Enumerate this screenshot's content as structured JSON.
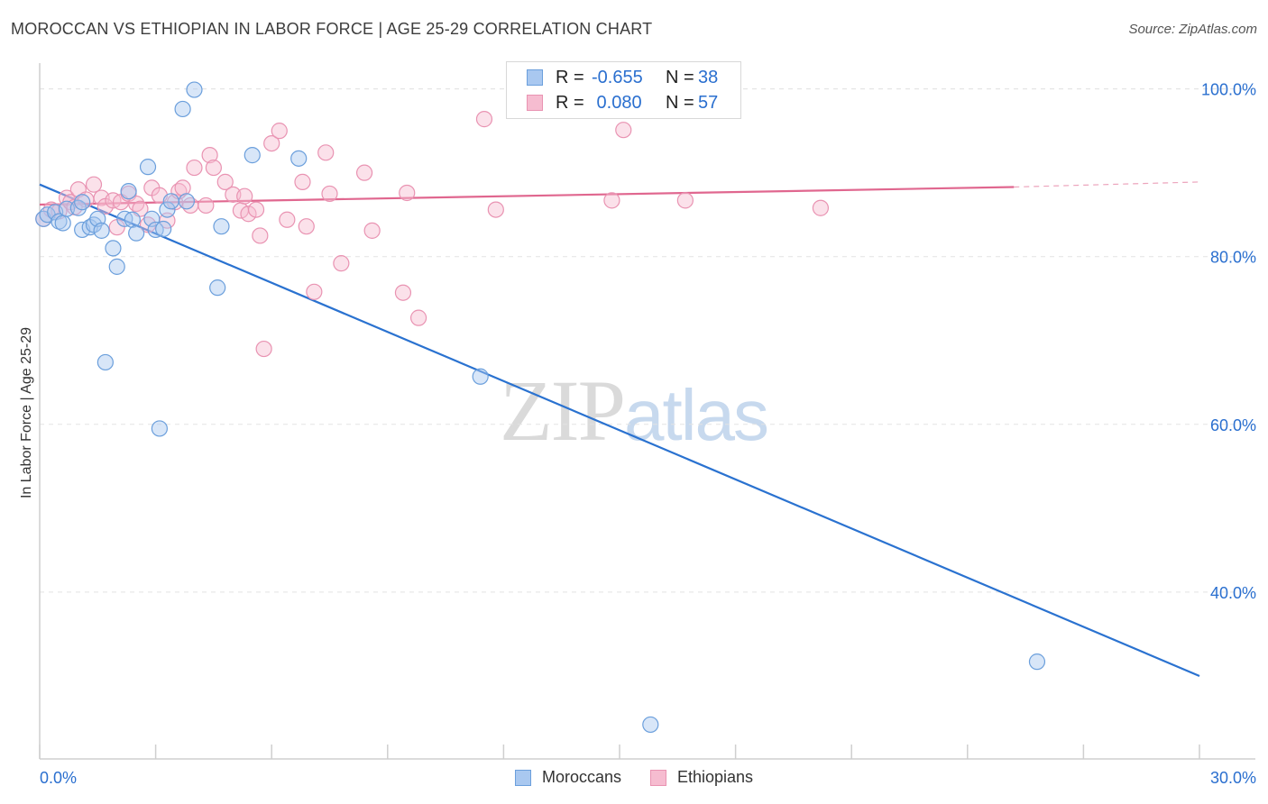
{
  "title": "MOROCCAN VS ETHIOPIAN IN LABOR FORCE | AGE 25-29 CORRELATION CHART",
  "source": "Source: ZipAtlas.com",
  "watermark": {
    "part1": "ZIP",
    "part2": "atlas"
  },
  "colors": {
    "moroccan_fill": "#a9c8f0",
    "moroccan_stroke": "#6b9fdc",
    "moroccan_line": "#2a72d0",
    "ethiopian_fill": "#f6bcd0",
    "ethiopian_stroke": "#e993b2",
    "ethiopian_line": "#e0678f",
    "axis_text": "#2a6fcf"
  },
  "legend": {
    "rows": [
      {
        "r_label": "R =",
        "r_value": "-0.655",
        "n_label": "N =",
        "n_value": "38",
        "series": "moroccan"
      },
      {
        "r_label": "R =",
        "r_value": " 0.080",
        "n_label": "N =",
        "n_value": "57",
        "series": "ethiopian"
      }
    ]
  },
  "bottom_legend": {
    "moroccan": "Moroccans",
    "ethiopian": "Ethiopians"
  },
  "chart_data": {
    "type": "scatter",
    "title": "MOROCCAN VS ETHIOPIAN IN LABOR FORCE | AGE 25-29 CORRELATION CHART",
    "xlabel": "",
    "ylabel": "In Labor Force | Age 25-29",
    "xlim": [
      0,
      30
    ],
    "ylim": [
      20,
      102
    ],
    "x_tick_labels": [
      "0.0%",
      "30.0%"
    ],
    "y_ticks": [
      40,
      60,
      80,
      100
    ],
    "y_tick_labels": [
      "40.0%",
      "60.0%",
      "80.0%",
      "100.0%"
    ],
    "grid": true,
    "legend_position": "top-center",
    "series": [
      {
        "name": "Moroccans",
        "points": [
          [
            0.1,
            84.5
          ],
          [
            0.2,
            85.0
          ],
          [
            0.4,
            85.3
          ],
          [
            0.5,
            84.2
          ],
          [
            0.6,
            84.0
          ],
          [
            0.7,
            85.7
          ],
          [
            1.0,
            85.8
          ],
          [
            1.1,
            86.5
          ],
          [
            1.1,
            83.2
          ],
          [
            1.3,
            83.5
          ],
          [
            1.4,
            83.8
          ],
          [
            1.5,
            84.5
          ],
          [
            1.6,
            83.1
          ],
          [
            1.9,
            81.0
          ],
          [
            2.0,
            78.8
          ],
          [
            2.2,
            84.5
          ],
          [
            2.3,
            87.8
          ],
          [
            2.4,
            84.4
          ],
          [
            2.5,
            82.8
          ],
          [
            2.8,
            90.7
          ],
          [
            2.9,
            84.5
          ],
          [
            3.0,
            83.2
          ],
          [
            3.2,
            83.3
          ],
          [
            3.3,
            85.6
          ],
          [
            3.4,
            86.6
          ],
          [
            3.7,
            97.6
          ],
          [
            3.8,
            86.6
          ],
          [
            4.0,
            99.9
          ],
          [
            4.7,
            83.6
          ],
          [
            4.6,
            76.3
          ],
          [
            5.5,
            92.1
          ],
          [
            6.7,
            91.7
          ],
          [
            1.7,
            67.4
          ],
          [
            3.1,
            59.5
          ],
          [
            11.4,
            65.7
          ],
          [
            12.9,
            99.8
          ],
          [
            25.8,
            31.7
          ],
          [
            15.8,
            24.2
          ]
        ],
        "trend": {
          "x": [
            0,
            30
          ],
          "y": [
            88.6,
            30.0
          ]
        }
      },
      {
        "name": "Ethiopians",
        "points": [
          [
            0.1,
            84.5
          ],
          [
            0.3,
            85.6
          ],
          [
            0.5,
            85.4
          ],
          [
            0.7,
            87.0
          ],
          [
            0.8,
            86.5
          ],
          [
            0.9,
            85.9
          ],
          [
            1.0,
            88.0
          ],
          [
            1.2,
            86.8
          ],
          [
            1.4,
            88.6
          ],
          [
            1.6,
            87.0
          ],
          [
            1.7,
            86.0
          ],
          [
            1.9,
            86.7
          ],
          [
            2.0,
            83.5
          ],
          [
            2.1,
            86.5
          ],
          [
            2.3,
            87.5
          ],
          [
            2.5,
            86.3
          ],
          [
            2.6,
            85.7
          ],
          [
            2.8,
            83.8
          ],
          [
            2.9,
            88.2
          ],
          [
            3.1,
            87.3
          ],
          [
            3.3,
            84.3
          ],
          [
            3.5,
            86.5
          ],
          [
            3.6,
            87.8
          ],
          [
            3.7,
            88.2
          ],
          [
            3.9,
            86.1
          ],
          [
            4.0,
            90.6
          ],
          [
            4.3,
            86.1
          ],
          [
            4.4,
            92.1
          ],
          [
            4.5,
            90.6
          ],
          [
            4.8,
            88.9
          ],
          [
            5.0,
            87.4
          ],
          [
            5.2,
            85.5
          ],
          [
            5.3,
            87.2
          ],
          [
            5.4,
            85.1
          ],
          [
            5.6,
            85.6
          ],
          [
            5.7,
            82.5
          ],
          [
            5.8,
            69.0
          ],
          [
            6.0,
            93.5
          ],
          [
            6.2,
            95.0
          ],
          [
            6.4,
            84.4
          ],
          [
            6.8,
            88.9
          ],
          [
            6.9,
            83.6
          ],
          [
            7.1,
            75.8
          ],
          [
            7.4,
            92.4
          ],
          [
            7.5,
            87.5
          ],
          [
            7.8,
            79.2
          ],
          [
            8.4,
            90.0
          ],
          [
            8.6,
            83.1
          ],
          [
            9.4,
            75.7
          ],
          [
            9.5,
            87.6
          ],
          [
            9.8,
            72.7
          ],
          [
            11.5,
            96.4
          ],
          [
            11.8,
            85.6
          ],
          [
            14.8,
            86.7
          ],
          [
            15.1,
            95.1
          ],
          [
            16.7,
            86.7
          ],
          [
            20.2,
            85.8
          ]
        ],
        "trend": {
          "x": [
            0,
            25.2
          ],
          "y": [
            86.2,
            88.3
          ]
        },
        "trend_dashed_extension": {
          "x": [
            25.2,
            30
          ],
          "y": [
            88.3,
            88.9
          ]
        }
      }
    ]
  }
}
